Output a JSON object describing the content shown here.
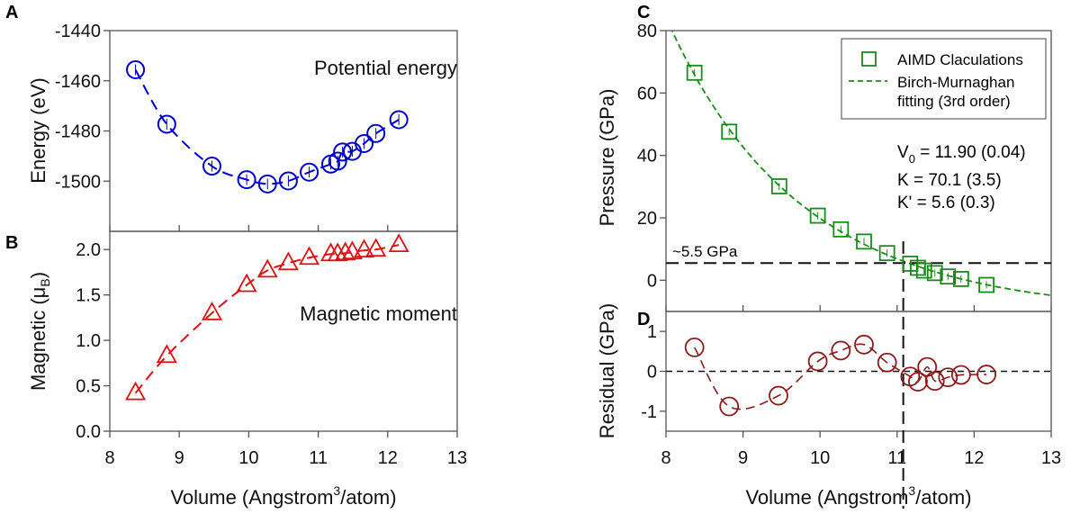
{
  "panel_letters": {
    "a": "A",
    "b": "B",
    "c": "C",
    "d": "D"
  },
  "chart_data": [
    {
      "panel": "A",
      "type": "line",
      "annotation": "Potential energy",
      "ylabel": "Energy (eV)",
      "xlim": [
        8,
        13
      ],
      "ylim": [
        -1520,
        -1440
      ],
      "yticks": [
        -1440,
        -1460,
        -1480,
        -1500
      ],
      "marker": "circle",
      "color": "#0000cc",
      "x": [
        8.37,
        8.82,
        9.47,
        9.97,
        10.27,
        10.57,
        10.87,
        11.18,
        11.28,
        11.35,
        11.49,
        11.66,
        11.83,
        12.16
      ],
      "y": [
        -1455.6,
        -1477.3,
        -1494.0,
        -1499.4,
        -1501.1,
        -1499.9,
        -1496.4,
        -1493.2,
        -1492.0,
        -1488.4,
        -1488.1,
        -1485.0,
        -1481.0,
        -1475.5
      ]
    },
    {
      "panel": "B",
      "type": "line",
      "annotation": "Magnetic moment",
      "ylabel": "Magnetic (μ",
      "ylabel_sub": "B",
      "ylabel_end": ")",
      "xlabel": "Volume (Angstrom",
      "xlabel_sup": "3",
      "xlabel_end": "/atom)",
      "xlim": [
        8,
        13
      ],
      "ylim": [
        0,
        2.2
      ],
      "xticks": [
        8,
        9,
        10,
        11,
        12,
        13
      ],
      "yticks": [
        "0.0",
        "0.5",
        "1.0",
        "1.5",
        "2.0"
      ],
      "marker": "triangle",
      "color": "#dd1111",
      "x": [
        8.37,
        8.82,
        9.47,
        9.97,
        10.27,
        10.57,
        10.87,
        11.18,
        11.28,
        11.39,
        11.49,
        11.66,
        11.83,
        12.16
      ],
      "y": [
        0.42,
        0.83,
        1.3,
        1.61,
        1.77,
        1.85,
        1.91,
        1.95,
        1.95,
        1.96,
        1.97,
        1.99,
        2.0,
        2.05
      ]
    },
    {
      "panel": "C",
      "type": "scatter",
      "ylabel": "Pressure (GPa)",
      "xlim": [
        8,
        13
      ],
      "ylim": [
        -10,
        80
      ],
      "yticks": [
        0,
        20,
        40,
        60,
        80
      ],
      "color": "#1a8a1a",
      "legend": {
        "position": "top-right",
        "entries": [
          "AIMD Claculations",
          "Birch-Murnaghan",
          "fitting (3rd order)"
        ]
      },
      "fit_params": {
        "v0_label": "V",
        "v0_sub": "0",
        "v0_value": " = 11.90 (0.04)",
        "k": "K  = 70.1 (3.5)",
        "kp": "K' =   5.6 (0.3)"
      },
      "fit": {
        "V0": 11.9,
        "K": 70.1,
        "Kp": 5.6
      },
      "reference_line": {
        "label": "~5.5 GPa",
        "pressure": 5.5,
        "volume": 11.08
      },
      "x": [
        8.37,
        8.82,
        9.47,
        9.97,
        10.27,
        10.57,
        10.87,
        11.17,
        11.27,
        11.35,
        11.49,
        11.66,
        11.83,
        12.16
      ],
      "y": [
        66.5,
        47.6,
        30.1,
        20.7,
        16.3,
        12.4,
        8.7,
        5.3,
        4.0,
        3.1,
        2.3,
        1.2,
        0.4,
        -1.5
      ]
    },
    {
      "panel": "D",
      "type": "line",
      "ylabel": "Residual (GPa)",
      "xlabel": "Volume (Angstrom",
      "xlabel_sup": "3",
      "xlabel_end": "/atom)",
      "xlim": [
        8,
        13
      ],
      "ylim": [
        -1.5,
        1.5
      ],
      "xticks": [
        8,
        9,
        10,
        11,
        12,
        13
      ],
      "yticks": [
        -1,
        0,
        1
      ],
      "color": "#8b1a1a",
      "x": [
        8.37,
        8.82,
        9.46,
        9.97,
        10.27,
        10.57,
        10.87,
        11.17,
        11.27,
        11.39,
        11.49,
        11.66,
        11.83,
        12.16
      ],
      "y": [
        0.6,
        -0.88,
        -0.61,
        0.25,
        0.52,
        0.67,
        0.22,
        -0.13,
        -0.26,
        0.11,
        -0.24,
        -0.15,
        -0.09,
        -0.08
      ]
    }
  ]
}
